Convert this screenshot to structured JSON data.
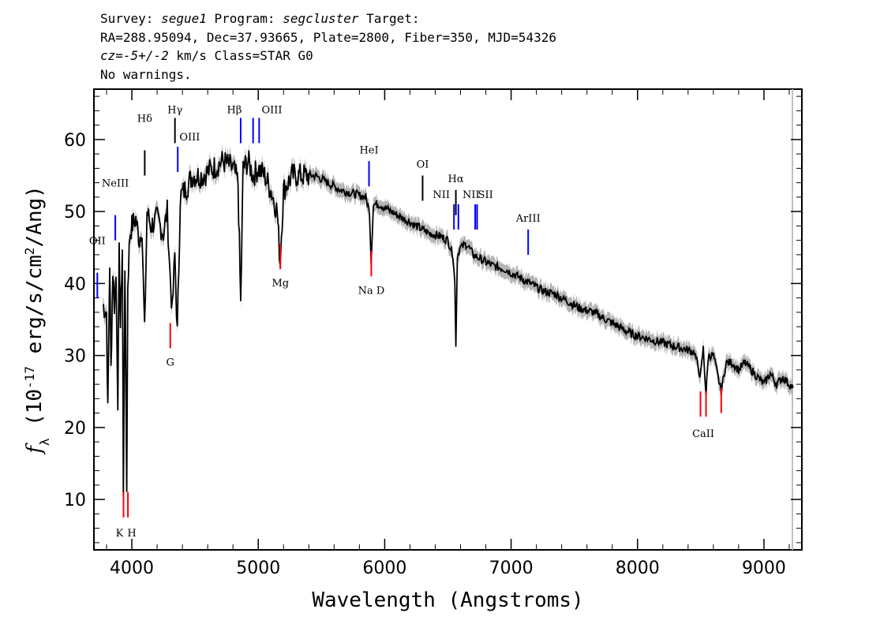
{
  "header": {
    "line1": {
      "survey_label": "Survey: ",
      "survey": "segue1",
      "program_label": " Program: ",
      "program": "segcluster",
      "target_label": " Target:"
    },
    "line2": "RA=288.95094, Dec=37.93665, Plate=2800, Fiber=350, MJD=54326",
    "line3": {
      "cz_label": "cz",
      "cz_value": "=-5+/-2",
      "rest": " km/s Class=STAR G0"
    },
    "line4": "No warnings."
  },
  "chart_data": {
    "type": "line",
    "xlabel": "Wavelength (Angstroms)",
    "ylabel_prefix": "f",
    "ylabel_sub": "λ",
    "ylabel_main": " (10",
    "ylabel_exp": "-17",
    "ylabel_units": " erg/s/cm",
    "ylabel_exp2": "2",
    "ylabel_tail": "/Ang)",
    "xlim": [
      3700,
      9300
    ],
    "ylim": [
      3,
      67
    ],
    "x_ticks": [
      4000,
      5000,
      6000,
      7000,
      8000,
      9000
    ],
    "x_tick_labels": [
      "4000",
      "5000",
      "6000",
      "7000",
      "8000",
      "9000"
    ],
    "y_ticks": [
      10,
      20,
      30,
      40,
      50,
      60
    ],
    "y_tick_labels": [
      "10",
      "20",
      "30",
      "40",
      "50",
      "60"
    ],
    "series": [
      {
        "color": "#000000",
        "error_color": "#b4b4b4",
        "x": [
          3770,
          3800,
          3810,
          3825,
          3835,
          3850,
          3862,
          3875,
          3889,
          3900,
          3910,
          3925,
          3933,
          3945,
          3960,
          3968,
          3985,
          4000,
          4030,
          4060,
          4080,
          4101,
          4120,
          4150,
          4200,
          4250,
          4280,
          4300,
          4320,
          4340,
          4360,
          4383,
          4420,
          4480,
          4560,
          4640,
          4720,
          4800,
          4840,
          4861,
          4880,
          4920,
          4960,
          5000,
          5050,
          5100,
          5150,
          5172,
          5200,
          5270,
          5350,
          5450,
          5550,
          5650,
          5750,
          5850,
          5880,
          5893,
          5910,
          5960,
          6050,
          6150,
          6250,
          6350,
          6450,
          6500,
          6540,
          6555,
          6563,
          6575,
          6600,
          6650,
          6700,
          6750,
          6850,
          6950,
          7050,
          7150,
          7250,
          7350,
          7450,
          7550,
          7650,
          7750,
          7850,
          7950,
          8050,
          8150,
          8250,
          8350,
          8450,
          8498,
          8520,
          8542,
          8560,
          8600,
          8662,
          8700,
          8750,
          8800,
          8850,
          8900,
          8950,
          9000,
          9050,
          9100,
          9150,
          9200,
          9230
        ],
        "y": [
          37,
          36,
          22,
          43,
          28,
          42,
          37,
          41,
          24,
          44,
          34,
          45,
          10,
          43,
          12,
          40,
          47,
          48,
          49,
          46,
          48,
          33,
          50,
          48,
          49,
          47,
          50,
          42,
          36,
          44,
          33,
          52,
          53,
          55,
          55,
          56,
          57,
          56,
          54,
          37,
          56,
          57,
          55,
          56,
          55,
          53,
          50,
          43,
          53,
          55,
          55,
          55,
          54,
          53,
          52.5,
          52,
          50,
          43,
          51,
          51,
          50,
          49,
          48,
          47,
          46.5,
          46,
          44,
          40,
          31.5,
          44,
          45,
          45.5,
          44,
          43.5,
          42.5,
          42,
          41,
          40,
          39,
          38.5,
          37.5,
          36.5,
          36,
          35,
          34,
          33,
          32.5,
          32,
          31.5,
          31,
          30.5,
          27,
          31,
          24.5,
          30,
          30,
          25,
          29,
          29,
          28,
          29,
          28,
          27,
          26,
          27.5,
          26,
          27,
          26,
          25.5
        ]
      }
    ],
    "emission_lines": [
      {
        "name": "OII",
        "wave": 3727,
        "y": 41.5,
        "color": "#0000ff"
      },
      {
        "name": "NeIII",
        "wave": 3869,
        "y": 49.5,
        "color": "#0000ff"
      },
      {
        "name": "Hδ",
        "wave": 4102,
        "y": 58.5,
        "color": "#000000"
      },
      {
        "name": "Hγ",
        "wave": 4341,
        "y": 63,
        "color": "#000000"
      },
      {
        "name": "OIII",
        "wave": 4363,
        "y": 59,
        "color": "#0000ff"
      },
      {
        "name": "Hβ",
        "wave": 4861,
        "y": 63,
        "color": "#0000ff"
      },
      {
        "name": "OIII",
        "wave": 4959,
        "y": 63,
        "color": "#0000ff"
      },
      {
        "name": "OIII",
        "wave": 5007,
        "y": 63,
        "color": "#0000ff"
      },
      {
        "name": "HeI",
        "wave": 5876,
        "y": 57,
        "color": "#0000ff"
      },
      {
        "name": "OI",
        "wave": 6300,
        "y": 55,
        "color": "#000000"
      },
      {
        "name": "NII",
        "wave": 6548,
        "y": 51,
        "color": "#0000ff"
      },
      {
        "name": "Hα",
        "wave": 6563,
        "y": 53,
        "color": "#000000"
      },
      {
        "name": "NII",
        "wave": 6583,
        "y": 51,
        "color": "#0000ff"
      },
      {
        "name": "SII",
        "wave": 6716,
        "y": 51,
        "color": "#0000ff"
      },
      {
        "name": "SII",
        "wave": 6731,
        "y": 51,
        "color": "#0000ff"
      },
      {
        "name": "ArIII",
        "wave": 7135,
        "y": 47.5,
        "color": "#0000ff"
      }
    ],
    "absorption_lines": [
      {
        "name": "K",
        "wave": 3934,
        "y": 7.5,
        "color": "#ff0000"
      },
      {
        "name": "H",
        "wave": 3969,
        "y": 7.5,
        "color": "#ff0000"
      },
      {
        "name": "G",
        "wave": 4304,
        "y": 31,
        "color": "#ff0000"
      },
      {
        "name": "Mg",
        "wave": 5175,
        "y": 42,
        "color": "#ff0000"
      },
      {
        "name": "Na D",
        "wave": 5894,
        "y": 41,
        "color": "#ff0000"
      },
      {
        "name": "CaII",
        "wave": 8498,
        "y": 21.5,
        "color": "#ff0000"
      },
      {
        "name": "CaII",
        "wave": 8542,
        "y": 21.5,
        "color": "#ff0000"
      },
      {
        "name": "CaII",
        "wave": 8662,
        "y": 22,
        "color": "#ff0000"
      }
    ],
    "line_label_texts": [
      {
        "text": "OII",
        "ref": "OII"
      },
      {
        "text": "NeIII",
        "ref": "NeIII"
      },
      {
        "text": "Hδ",
        "ref": "Hδ"
      },
      {
        "text": "Hγ",
        "ref": "Hγ"
      },
      {
        "text": "OIII",
        "ref": "OIII-4363"
      },
      {
        "text": "Hβ",
        "ref": "Hβ"
      },
      {
        "text": "OIII",
        "ref": "OIII-5007"
      },
      {
        "text": "HeI",
        "ref": "HeI"
      },
      {
        "text": "OI",
        "ref": "OI"
      },
      {
        "text": "NII",
        "ref": "NII"
      },
      {
        "text": "Hα",
        "ref": "Hα"
      },
      {
        "text": "NII",
        "ref": "NII-6583"
      },
      {
        "text": "SII",
        "ref": "SII"
      },
      {
        "text": "ArIII",
        "ref": "ArIII"
      },
      {
        "text": "K",
        "ref": "K"
      },
      {
        "text": "H",
        "ref": "H"
      },
      {
        "text": "G",
        "ref": "G"
      },
      {
        "text": "Mg",
        "ref": "Mg"
      },
      {
        "text": "Na D",
        "ref": "Na D"
      },
      {
        "text": "CaII",
        "ref": "CaII"
      }
    ]
  }
}
